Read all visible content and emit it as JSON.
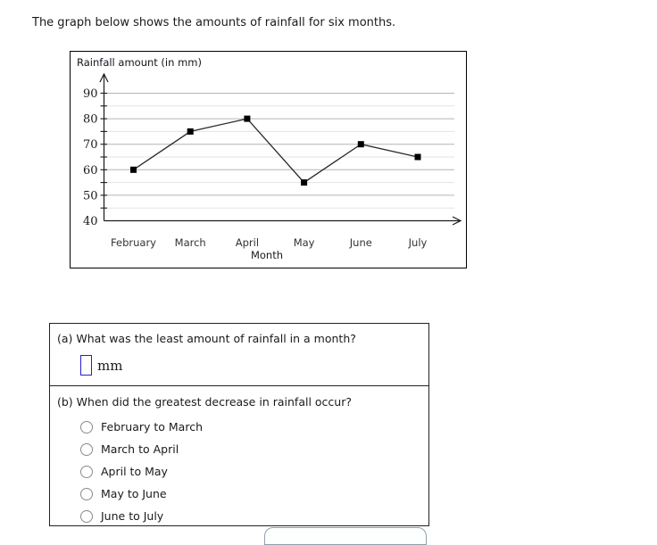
{
  "page": {
    "title": "The graph below shows the amounts of rainfall for six months."
  },
  "chart_data": {
    "type": "line",
    "title": "Rainfall amount (in mm)",
    "xlabel": "Month",
    "categories": [
      "February",
      "March",
      "April",
      "May",
      "June",
      "July"
    ],
    "values": [
      60,
      75,
      80,
      55,
      70,
      65
    ],
    "ylim": [
      40,
      90
    ],
    "ytick_major_step": 10,
    "ytick_minor_step": 5,
    "grid": "horizontal",
    "legend": "none",
    "marker": "filled-square",
    "colors": {
      "line": "#2a2a2a",
      "marker": "#000000",
      "grid_major": "#b5b5b5",
      "grid_minor": "#e3e3e3",
      "axis": "#1a1a1a"
    }
  },
  "questions": {
    "a": {
      "prompt": "(a) What was the least amount of rainfall in a month?",
      "answer_value": "",
      "unit_label": "mm",
      "answer_box_border_color": "#2121cc"
    },
    "b": {
      "prompt": "(b) When did the greatest decrease in rainfall occur?",
      "selected": null,
      "options": [
        "February to March",
        "March to April",
        "April to May",
        "May to June",
        "June to July"
      ]
    }
  }
}
